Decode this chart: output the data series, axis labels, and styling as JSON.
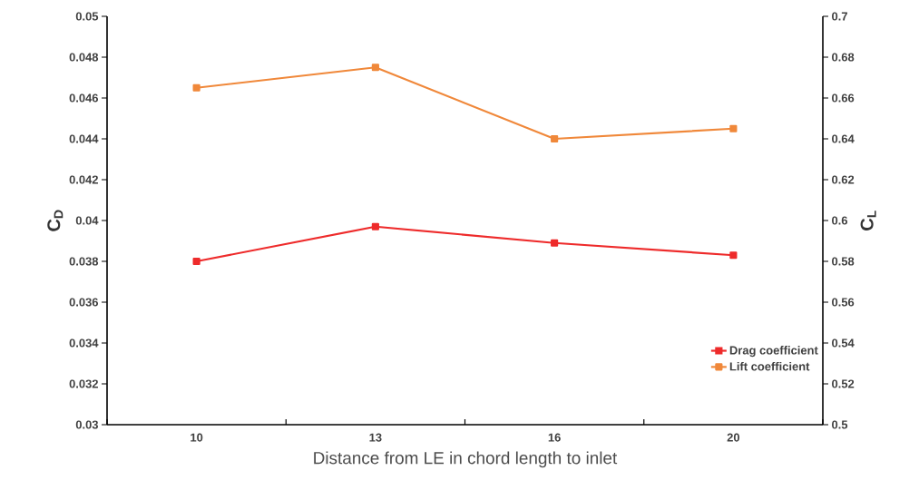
{
  "chart_data": {
    "type": "line",
    "xlabel": "Distance from LE in chord length to inlet",
    "ylabel": "C$_{D}$",
    "y2label": "C$_{L}$",
    "categories": [
      "10",
      "13",
      "16",
      "20"
    ],
    "series": [
      {
        "name": "Drag coefficient",
        "color": "#ee2b2b",
        "values": [
          0.038,
          0.0397,
          0.0389,
          0.0383
        ]
      },
      {
        "name": "Lift coefficient",
        "color": "#f0883a",
        "values": [
          0.665,
          0.675,
          0.64,
          0.645
        ],
        "axis": "y2"
      }
    ],
    "ylim": [
      0.03,
      0.05
    ],
    "yticks": [
      0.03,
      0.032,
      0.034,
      0.036,
      0.038,
      0.04,
      0.042,
      0.044,
      0.046,
      0.048,
      0.05
    ],
    "y2lim": [
      0.5,
      0.7
    ],
    "y2ticks": [
      0.5,
      0.52,
      0.54,
      0.56,
      0.58,
      0.6,
      0.62,
      0.64,
      0.66,
      0.68,
      0.7
    ],
    "legend": "bottom right",
    "marker": "square",
    "line_style": "solid",
    "grid": false
  }
}
